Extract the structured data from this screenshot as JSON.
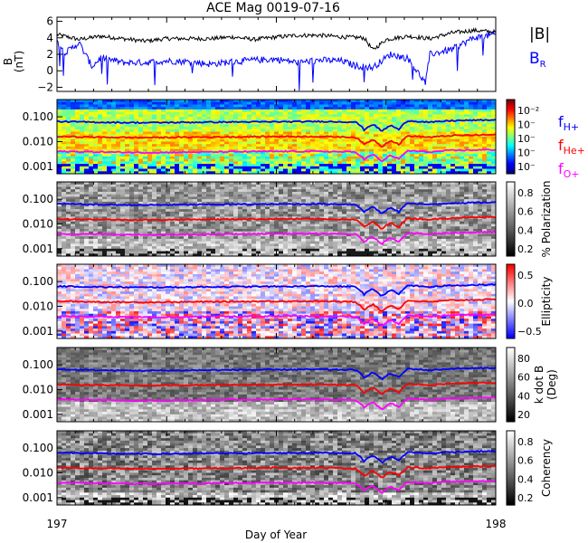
{
  "chart_data": {
    "type": "line",
    "title": "ACE Mag 0019-07-16",
    "xlabel": "Day of Year",
    "xlim": [
      197,
      198
    ],
    "x_ticks": [
      "197",
      "198"
    ],
    "panels": [
      {
        "id": "bfield",
        "ylabel_top": "B",
        "ylabel_bottom": "(nT)",
        "ylim": [
          -2.5,
          6.5
        ],
        "y_ticks": [
          "6",
          "4",
          "2",
          "0",
          "−2"
        ],
        "y_tick_values": [
          6,
          4,
          2,
          0,
          -2
        ],
        "series": [
          {
            "name": "|B|",
            "color": "#000000",
            "x": [
              197.0,
              197.05,
              197.1,
              197.15,
              197.2,
              197.25,
              197.3,
              197.35,
              197.4,
              197.45,
              197.5,
              197.55,
              197.6,
              197.65,
              197.7,
              197.72,
              197.75,
              197.8,
              197.85,
              197.9,
              197.95,
              198.0
            ],
            "y": [
              4.4,
              3.8,
              4.2,
              3.9,
              3.6,
              3.9,
              3.9,
              3.9,
              4.1,
              3.8,
              4.1,
              4.3,
              4.3,
              4.1,
              4.0,
              2.5,
              3.8,
              4.2,
              3.9,
              4.6,
              4.9,
              4.7
            ]
          },
          {
            "name": "B_R",
            "color": "#0000ff",
            "x": [
              197.0,
              197.02,
              197.05,
              197.08,
              197.1,
              197.15,
              197.2,
              197.25,
              197.3,
              197.35,
              197.4,
              197.45,
              197.5,
              197.55,
              197.6,
              197.65,
              197.68,
              197.72,
              197.76,
              197.8,
              197.84,
              197.85,
              197.9,
              197.95,
              198.0
            ],
            "y": [
              3.5,
              2.2,
              3.4,
              0.5,
              1.6,
              1.0,
              1.0,
              1.2,
              1.1,
              0.8,
              1.1,
              1.3,
              1.4,
              1.0,
              1.3,
              1.2,
              0.6,
              0.4,
              2.0,
              1.5,
              -1.5,
              2.0,
              2.6,
              4.0,
              4.4
            ]
          }
        ],
        "legend": [
          "|B|",
          "B_R"
        ]
      },
      {
        "id": "spectrogram",
        "colormap": "rainbow",
        "colorbar_ticks": [
          "10⁻²",
          "10⁻",
          "10⁻",
          "10⁻",
          "10⁻"
        ],
        "ylim_log": [
          0.0005,
          0.5
        ],
        "y_ticks": [
          "0.100",
          "0.010",
          "0.001"
        ]
      },
      {
        "id": "polarization",
        "colormap": "gray",
        "colorbar_label": "% Polarization",
        "colorbar_ticks": [
          "0.8",
          "0.6",
          "0.4",
          "0.2"
        ],
        "ylim_log": [
          0.0005,
          0.5
        ],
        "y_ticks": [
          "0.100",
          "0.010",
          "0.001"
        ]
      },
      {
        "id": "ellipticity",
        "colormap": "blue-white-red",
        "colorbar_label": "Ellipticity",
        "colorbar_ticks": [
          "0.5",
          "0.0",
          "−0.5"
        ],
        "ylim_log": [
          0.0005,
          0.5
        ],
        "y_ticks": [
          "0.100",
          "0.010",
          "0.001"
        ]
      },
      {
        "id": "kdotb",
        "colormap": "gray",
        "colorbar_label_top": "k dot B",
        "colorbar_label_bottom": "(Deg)",
        "colorbar_ticks": [
          "80",
          "60",
          "40",
          "20"
        ],
        "ylim_log": [
          0.0005,
          0.5
        ],
        "y_ticks": [
          "0.100",
          "0.010",
          "0.001"
        ]
      },
      {
        "id": "coherency",
        "colormap": "gray",
        "colorbar_label": "Coherency",
        "colorbar_ticks": [
          "0.8",
          "0.6",
          "0.4",
          "0.2"
        ],
        "ylim_log": [
          0.0005,
          0.5
        ],
        "y_ticks": [
          "0.100",
          "0.010",
          "0.001"
        ]
      }
    ],
    "gyrofrequency_lines": {
      "x": [
        197.0,
        197.1,
        197.2,
        197.3,
        197.4,
        197.5,
        197.6,
        197.68,
        197.7,
        197.72,
        197.74,
        197.76,
        197.78,
        197.8,
        197.85,
        197.9,
        198.0
      ],
      "series": [
        {
          "name": "f_H+",
          "color": "#0000ff",
          "values": [
            0.065,
            0.06,
            0.058,
            0.06,
            0.062,
            0.063,
            0.065,
            0.062,
            0.03,
            0.05,
            0.025,
            0.045,
            0.03,
            0.07,
            0.06,
            0.07,
            0.075
          ]
        },
        {
          "name": "f_He+",
          "color": "#ff0000",
          "values": [
            0.016,
            0.015,
            0.0145,
            0.015,
            0.0155,
            0.016,
            0.016,
            0.015,
            0.0075,
            0.012,
            0.006,
            0.011,
            0.0075,
            0.017,
            0.015,
            0.0175,
            0.019
          ]
        },
        {
          "name": "f_O+",
          "color": "#ff00ff",
          "values": [
            0.004,
            0.0038,
            0.0036,
            0.0037,
            0.0039,
            0.004,
            0.004,
            0.0038,
            0.0019,
            0.003,
            0.0015,
            0.0028,
            0.0019,
            0.0043,
            0.0038,
            0.0044,
            0.0047
          ]
        }
      ]
    },
    "legend_labels": {
      "hplus": "f",
      "hplus_sub": "H+",
      "heplus": "f",
      "heplus_sub": "He+",
      "oplus": "f",
      "oplus_sub": "O+"
    }
  }
}
